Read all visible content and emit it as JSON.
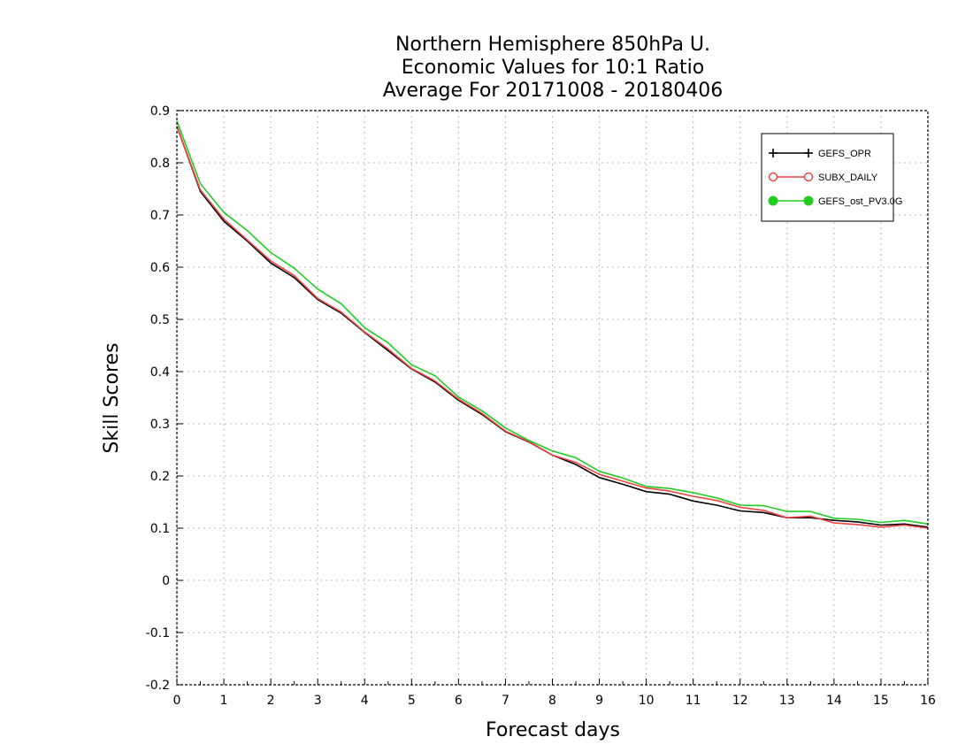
{
  "chart_data": {
    "type": "line",
    "title_lines": [
      "Northern Hemisphere 850hPa U.",
      "Economic Values for 10:1 Ratio",
      "Average For 20171008 - 20180406"
    ],
    "xlabel": "Forecast days",
    "ylabel": "Skill Scores",
    "xlim": [
      0,
      16
    ],
    "ylim": [
      -0.2,
      0.9
    ],
    "x_ticks": [
      "0",
      "1",
      "2",
      "3",
      "4",
      "5",
      "6",
      "7",
      "8",
      "9",
      "10",
      "11",
      "12",
      "13",
      "14",
      "15",
      "16"
    ],
    "y_ticks": [
      "0.9",
      "0.8",
      "0.7",
      "0.6",
      "0.5",
      "0.4",
      "0.3",
      "0.2",
      "0.1",
      "0",
      "-0.1",
      "-0.2"
    ],
    "grid": true,
    "legend_position": "top-right",
    "x": [
      0,
      0.5,
      1,
      1.5,
      2,
      2.5,
      3,
      3.5,
      4,
      4.5,
      5,
      5.5,
      6,
      6.5,
      7,
      7.5,
      8,
      8.5,
      9,
      9.5,
      10,
      10.5,
      11,
      11.5,
      12,
      12.5,
      13,
      13.5,
      14,
      14.5,
      15,
      15.5,
      16
    ],
    "series": [
      {
        "name": "GEFS_OPR",
        "color": "#000000",
        "marker": "plus",
        "values": [
          0.87,
          0.745,
          0.688,
          0.65,
          0.608,
          0.58,
          0.538,
          0.512,
          0.475,
          0.44,
          0.405,
          0.38,
          0.345,
          0.318,
          0.285,
          0.265,
          0.24,
          0.222,
          0.197,
          0.184,
          0.17,
          0.165,
          0.152,
          0.144,
          0.133,
          0.13,
          0.12,
          0.12,
          0.115,
          0.112,
          0.106,
          0.108,
          0.102
        ]
      },
      {
        "name": "SUBX_DAILY",
        "color": "#ee4444",
        "marker": "circle-open",
        "values": [
          0.87,
          0.748,
          0.692,
          0.652,
          0.612,
          0.584,
          0.54,
          0.514,
          0.476,
          0.443,
          0.406,
          0.382,
          0.347,
          0.32,
          0.286,
          0.266,
          0.24,
          0.226,
          0.203,
          0.19,
          0.177,
          0.171,
          0.161,
          0.153,
          0.14,
          0.134,
          0.12,
          0.123,
          0.11,
          0.107,
          0.102,
          0.106,
          0.1
        ]
      },
      {
        "name": "GEFS_ost_PV3.0G",
        "color": "#22cc22",
        "marker": "circle-filled",
        "values": [
          0.88,
          0.76,
          0.705,
          0.67,
          0.628,
          0.598,
          0.558,
          0.53,
          0.484,
          0.455,
          0.413,
          0.392,
          0.351,
          0.325,
          0.292,
          0.268,
          0.248,
          0.235,
          0.209,
          0.196,
          0.18,
          0.176,
          0.168,
          0.158,
          0.144,
          0.143,
          0.132,
          0.132,
          0.119,
          0.117,
          0.111,
          0.115,
          0.108
        ]
      }
    ]
  }
}
